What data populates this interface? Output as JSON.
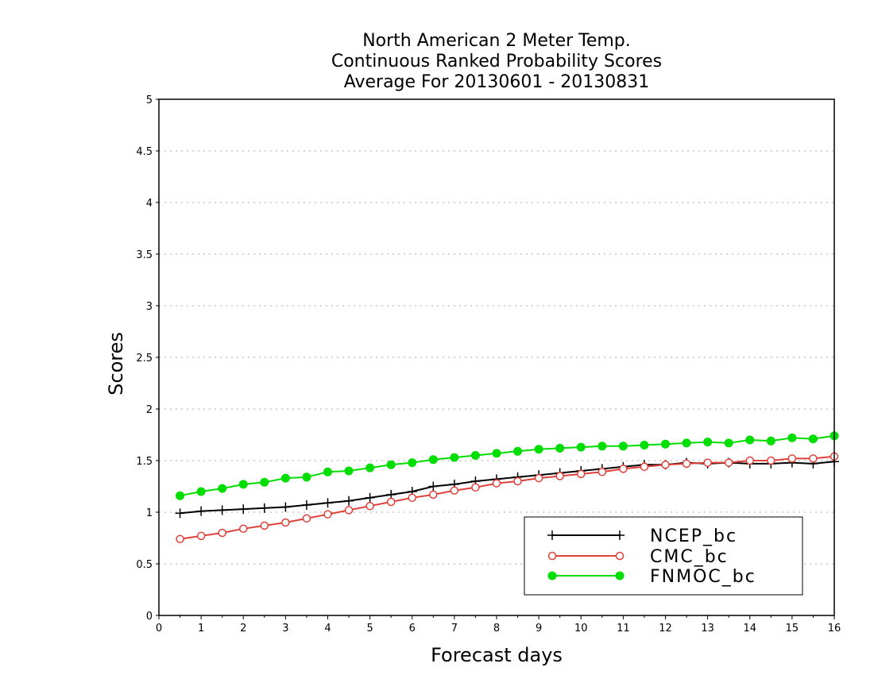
{
  "chart_data": {
    "type": "line",
    "title_lines": [
      "North American 2 Meter Temp.",
      "Continuous Ranked Probability Scores",
      "Average For 20130601 - 20130831"
    ],
    "xlabel": "Forecast days",
    "ylabel": "Scores",
    "xlim": [
      0,
      16
    ],
    "ylim": [
      0,
      5
    ],
    "xticks": [
      "0",
      "1",
      "2",
      "3",
      "4",
      "5",
      "6",
      "7",
      "8",
      "9",
      "10",
      "11",
      "12",
      "13",
      "14",
      "15",
      "16"
    ],
    "yticks": [
      "0",
      "0.5",
      "1",
      "1.5",
      "2",
      "2.5",
      "3",
      "3.5",
      "4",
      "4.5",
      "5"
    ],
    "grid": "horizontal dotted",
    "legend_position": "bottom-right",
    "x": [
      0.5,
      1,
      1.5,
      2,
      2.5,
      3,
      3.5,
      4,
      4.5,
      5,
      5.5,
      6,
      6.5,
      7,
      7.5,
      8,
      8.5,
      9,
      9.5,
      10,
      10.5,
      11,
      11.5,
      12,
      12.5,
      13,
      13.5,
      14,
      14.5,
      15,
      15.5,
      16
    ],
    "series": [
      {
        "name": "NCEP_bc",
        "color": "#000000",
        "marker": "plus",
        "values": [
          0.99,
          1.01,
          1.02,
          1.03,
          1.04,
          1.05,
          1.07,
          1.09,
          1.11,
          1.14,
          1.17,
          1.2,
          1.25,
          1.27,
          1.3,
          1.32,
          1.34,
          1.36,
          1.38,
          1.4,
          1.42,
          1.44,
          1.46,
          1.46,
          1.48,
          1.47,
          1.48,
          1.47,
          1.47,
          1.48,
          1.47,
          1.49
        ]
      },
      {
        "name": "CMC_bc",
        "color": "#e0403a",
        "marker": "open-circle",
        "values": [
          0.74,
          0.77,
          0.8,
          0.84,
          0.87,
          0.9,
          0.94,
          0.98,
          1.02,
          1.06,
          1.1,
          1.14,
          1.17,
          1.21,
          1.24,
          1.28,
          1.3,
          1.33,
          1.35,
          1.37,
          1.39,
          1.42,
          1.44,
          1.46,
          1.47,
          1.48,
          1.48,
          1.5,
          1.5,
          1.52,
          1.52,
          1.54
        ]
      },
      {
        "name": "FNMOC_bc",
        "color": "#00dd00",
        "marker": "filled-circle",
        "values": [
          1.16,
          1.2,
          1.23,
          1.27,
          1.29,
          1.33,
          1.34,
          1.39,
          1.4,
          1.43,
          1.46,
          1.48,
          1.51,
          1.53,
          1.55,
          1.57,
          1.59,
          1.61,
          1.62,
          1.63,
          1.64,
          1.64,
          1.65,
          1.66,
          1.67,
          1.68,
          1.67,
          1.7,
          1.69,
          1.72,
          1.71,
          1.74
        ]
      }
    ]
  }
}
